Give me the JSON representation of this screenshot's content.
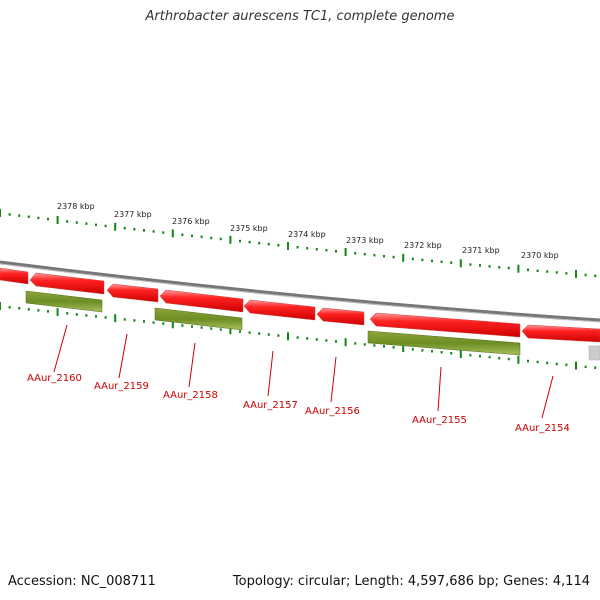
{
  "title": "Arthrobacter aurescens TC1, complete genome",
  "footer": {
    "accession": "Accession: NC_008711",
    "summary": "Topology: circular; Length: 4,597,686 bp; Genes: 4,114"
  },
  "colors": {
    "gene_forward": "#ee1111",
    "gene_other": "#6b8e23",
    "backbone": "#888888",
    "tick": "#118811",
    "label": "#cc0000"
  },
  "kbp_markers": [
    "2378 kbp",
    "2377 kbp",
    "2376 kbp",
    "2375 kbp",
    "2374 kbp",
    "2373 kbp",
    "2372 kbp",
    "2371 kbp",
    "2370 kbp"
  ],
  "genes": [
    "AAur_2160",
    "AAur_2159",
    "AAur_2158",
    "AAur_2157",
    "AAur_2156",
    "AAur_2155",
    "AAur_2154"
  ]
}
